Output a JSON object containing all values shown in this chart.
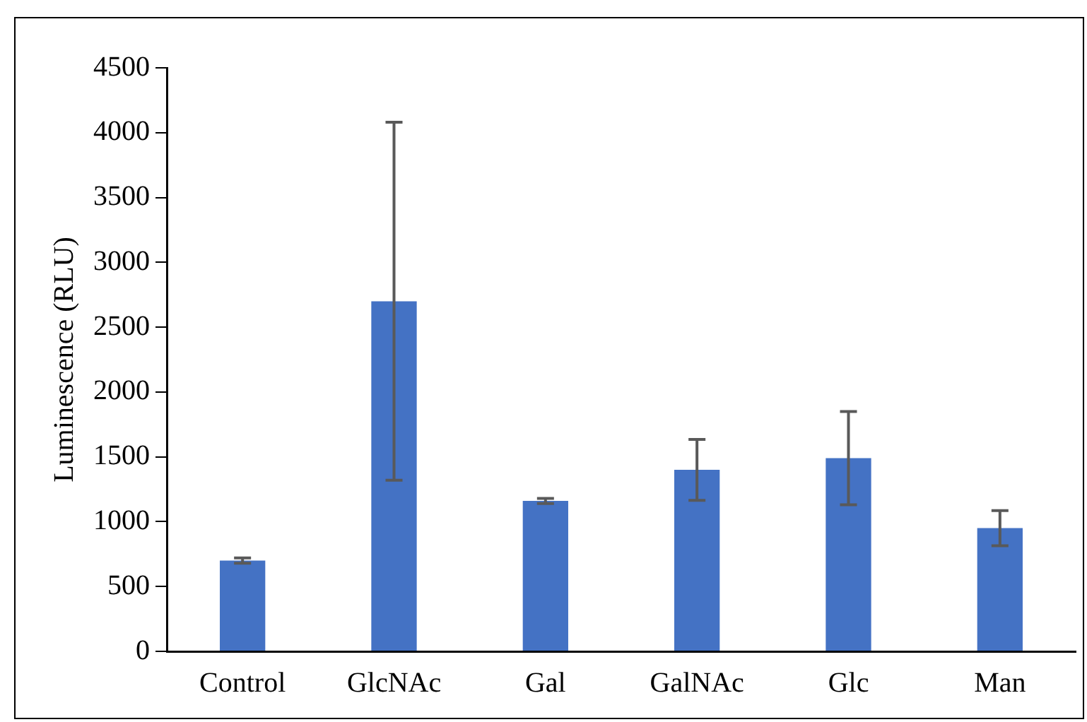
{
  "chart_data": {
    "type": "bar",
    "ylabel": "Luminescence (RLU)",
    "categories": [
      "Control",
      "GlcNAc",
      "Gal",
      "GalNAc",
      "Glc",
      "Man"
    ],
    "values": [
      700,
      2700,
      1160,
      1400,
      1490,
      950
    ],
    "errors": [
      20,
      1380,
      20,
      235,
      360,
      135
    ],
    "color": "#4472c4",
    "ylim": [
      0,
      4500
    ],
    "yticks": [
      0,
      500,
      1000,
      1500,
      2000,
      2500,
      3000,
      3500,
      4000,
      4500
    ],
    "grid": false,
    "legend": false
  }
}
